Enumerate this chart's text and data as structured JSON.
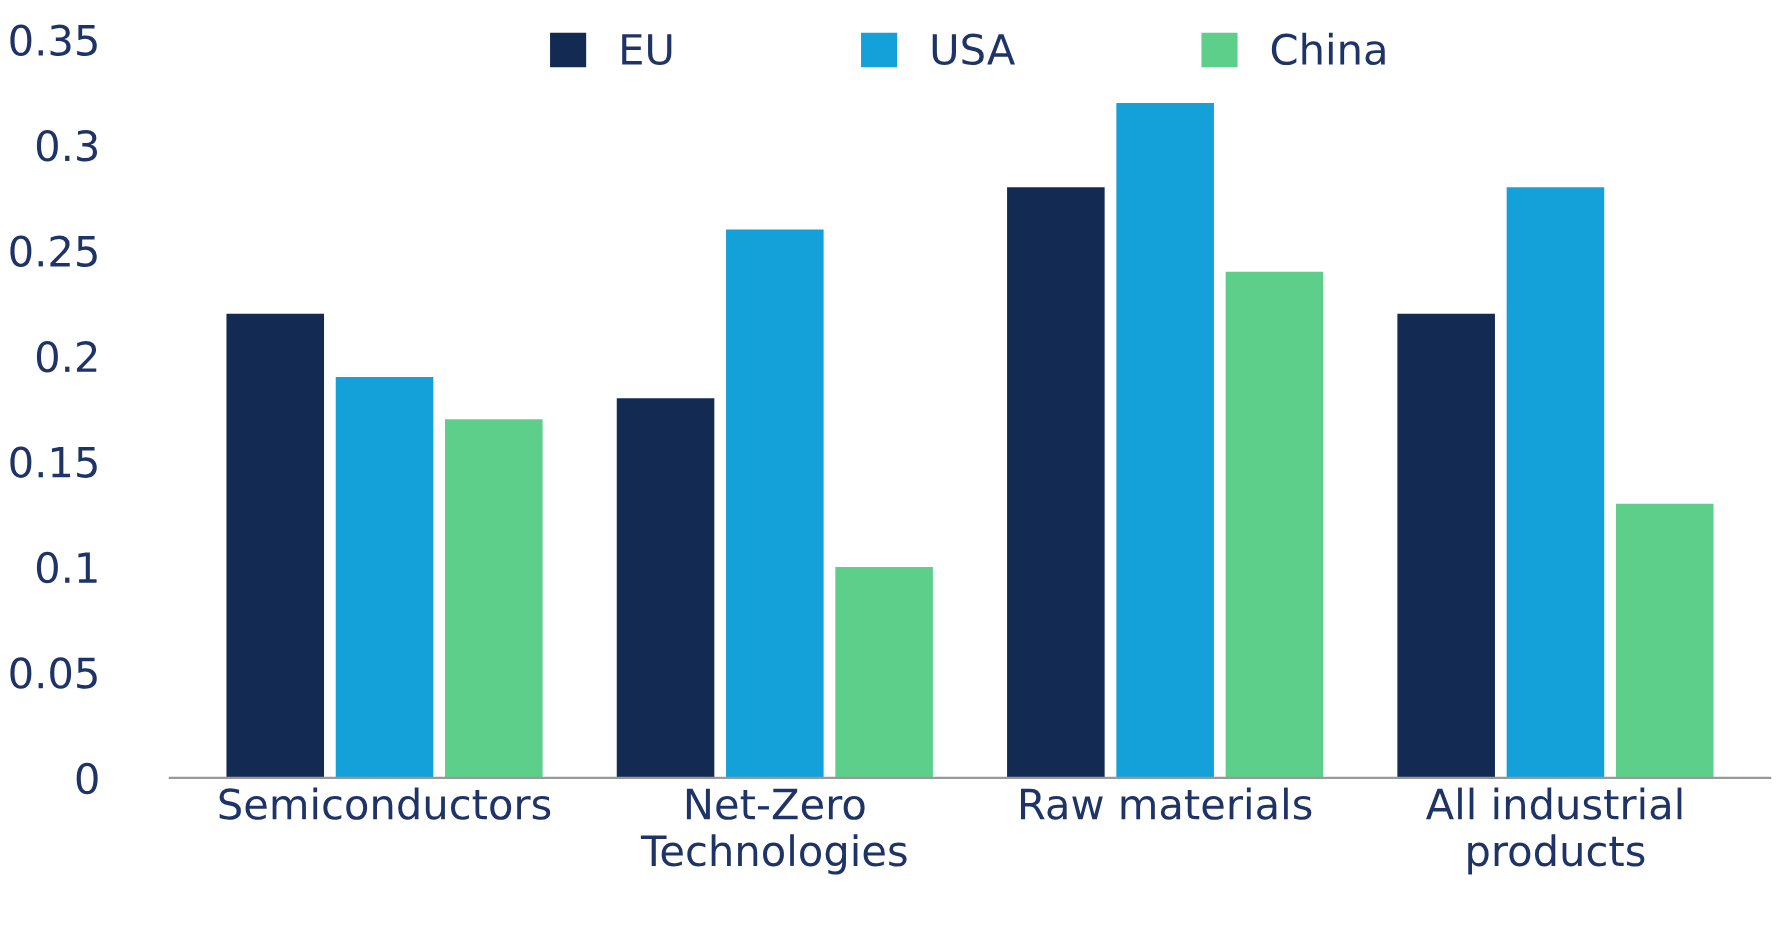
{
  "chart_data": {
    "type": "bar",
    "categories": [
      "Semiconductors",
      "Net-Zero\nTechnologies",
      "Raw materials",
      "All industrial\nproducts"
    ],
    "series": [
      {
        "name": "EU",
        "color": "#132b52",
        "values": [
          0.22,
          0.18,
          0.28,
          0.22
        ]
      },
      {
        "name": "USA",
        "color": "#14a0d8",
        "values": [
          0.19,
          0.26,
          0.32,
          0.28
        ]
      },
      {
        "name": "China",
        "color": "#5ecf8a",
        "values": [
          0.17,
          0.1,
          0.24,
          0.13
        ]
      }
    ],
    "ylim": [
      0,
      0.35
    ],
    "yticks": [
      0,
      0.05,
      0.1,
      0.15,
      0.2,
      0.25,
      0.3,
      0.35
    ],
    "grid": false,
    "legend": "top"
  }
}
